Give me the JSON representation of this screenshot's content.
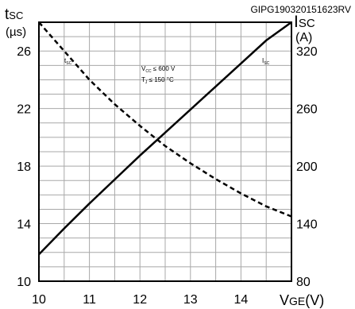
{
  "figure_id": "GIPG190320151623RV",
  "conditions": {
    "line1": "V",
    "line1_sub": "CC",
    "line1_rest": " ≤ 600 V",
    "line2": "T",
    "line2_sub": "J",
    "line2_rest": " ≤ 150 °C"
  },
  "chart_data": {
    "type": "line",
    "x": [
      10,
      10.5,
      11,
      11.5,
      12,
      12.5,
      13,
      13.5,
      14,
      14.5,
      15
    ],
    "xlim": [
      10,
      15
    ],
    "x_ticks": [
      "10",
      "11",
      "12",
      "13",
      "14"
    ],
    "xlabel": {
      "main": "V",
      "sub": "GE",
      "unit": "(V)"
    },
    "y_left": {
      "label": {
        "main": "t",
        "sub": "SC",
        "unit": "(µs)"
      },
      "lim": [
        10,
        28
      ],
      "ticks": [
        "10",
        "14",
        "18",
        "22",
        "26"
      ]
    },
    "y_right": {
      "label": {
        "main": "I",
        "sub": "SC",
        "unit": "(A)"
      },
      "lim": [
        80,
        350
      ],
      "ticks": [
        "80",
        "140",
        "200",
        "260",
        "320"
      ]
    },
    "grid": true,
    "series": [
      {
        "name": "t",
        "name_sub": "SC",
        "axis": "left",
        "style": "dashed",
        "values": [
          28.2,
          26.0,
          24.0,
          22.3,
          20.8,
          19.4,
          18.2,
          17.1,
          16.1,
          15.2,
          14.5
        ]
      },
      {
        "name": "I",
        "name_sub": "SC",
        "axis": "right",
        "style": "solid",
        "values": [
          108,
          135,
          161,
          186,
          211,
          235,
          259,
          283,
          307,
          331,
          355
        ]
      }
    ]
  }
}
